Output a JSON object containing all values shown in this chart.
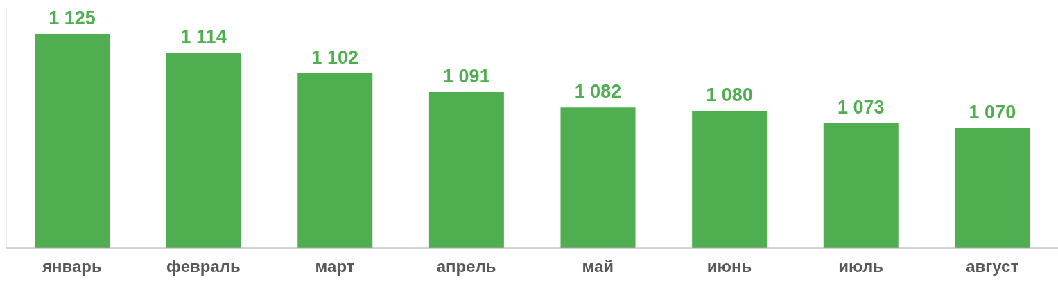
{
  "chart_data": {
    "type": "bar",
    "categories": [
      "январь",
      "февраль",
      "март",
      "апрель",
      "май",
      "июнь",
      "июль",
      "август"
    ],
    "values": [
      1125,
      1114,
      1102,
      1091,
      1082,
      1080,
      1073,
      1070
    ],
    "value_labels": [
      "1 125",
      "1 114",
      "1 102",
      "1 091",
      "1 082",
      "1 080",
      "1 073",
      "1 070"
    ],
    "color": "#4fae4f",
    "ylim": [
      1000,
      1140
    ],
    "tick_labels": "x",
    "grid": false,
    "legend": false
  }
}
